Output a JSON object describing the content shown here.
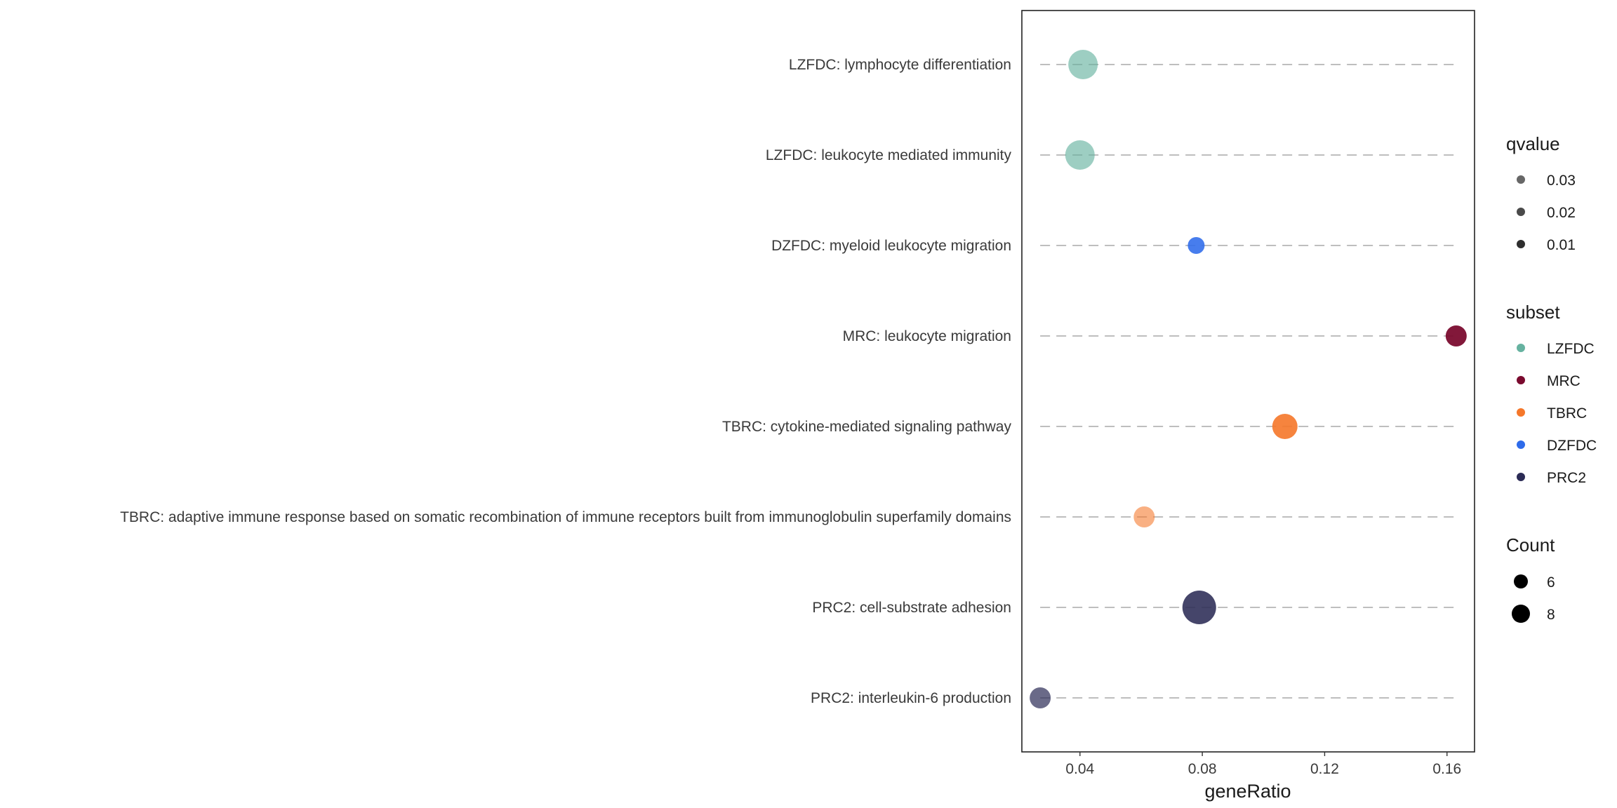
{
  "chart_data": {
    "type": "scatter",
    "title": "",
    "xlabel": "geneRatio",
    "ylabel": "",
    "xlim": [
      0.021,
      0.169
    ],
    "xticks": [
      0.04,
      0.08,
      0.12,
      0.16
    ],
    "xtick_labels": [
      "0.04",
      "0.08",
      "0.12",
      "0.16"
    ],
    "grid": "dashed horizontal guide per term",
    "categories": [
      "LZFDC: lymphocyte differentiation",
      "LZFDC: leukocyte mediated immunity",
      "DZFDC: myeloid leukocyte migration",
      "MRC: leukocyte migration",
      "TBRC: cytokine-mediated signaling pathway",
      "TBRC: adaptive immune response based on somatic recombination of immune receptors built from immunoglobulin superfamily domains",
      "PRC2: cell-substrate adhesion",
      "PRC2: interleukin-6 production"
    ],
    "points": [
      {
        "term": "LZFDC: lymphocyte differentiation",
        "subset": "LZFDC",
        "x": 0.041,
        "count": 8,
        "qvalue": 0.03
      },
      {
        "term": "LZFDC: leukocyte mediated immunity",
        "subset": "LZFDC",
        "x": 0.04,
        "count": 8,
        "qvalue": 0.03
      },
      {
        "term": "DZFDC: myeloid leukocyte migration",
        "subset": "DZFDC",
        "x": 0.078,
        "count": 5,
        "qvalue": 0.01
      },
      {
        "term": "MRC: leukocyte migration",
        "subset": "MRC",
        "x": 0.163,
        "count": 6,
        "qvalue": 0.005
      },
      {
        "term": "TBRC: cytokine-mediated signaling pathway",
        "subset": "TBRC",
        "x": 0.107,
        "count": 7,
        "qvalue": 0.008
      },
      {
        "term": "TBRC: adaptive immune response based on somatic recombination of immune receptors built from immunoglobulin superfamily domains",
        "subset": "TBRC",
        "x": 0.061,
        "count": 6,
        "qvalue": 0.035
      },
      {
        "term": "PRC2: cell-substrate adhesion",
        "subset": "PRC2",
        "x": 0.079,
        "count": 9,
        "qvalue": 0.01
      },
      {
        "term": "PRC2: interleukin-6 production",
        "subset": "PRC2",
        "x": 0.027,
        "count": 6,
        "qvalue": 0.025
      }
    ],
    "subset_colors": {
      "LZFDC": "#66B2A0",
      "MRC": "#7A0A2E",
      "TBRC": "#F5772A",
      "DZFDC": "#2E6BEA",
      "PRC2": "#2B2B55"
    },
    "legend_placement": "right",
    "legends": {
      "qvalue": {
        "title": "qvalue",
        "entries": [
          "0.03",
          "0.02",
          "0.01"
        ],
        "values": [
          0.03,
          0.02,
          0.01
        ]
      },
      "subset": {
        "title": "subset",
        "entries": [
          "LZFDC",
          "MRC",
          "TBRC",
          "DZFDC",
          "PRC2"
        ]
      },
      "count": {
        "title": "Count",
        "entries": [
          "6",
          "8"
        ],
        "values": [
          6,
          8
        ]
      }
    }
  }
}
